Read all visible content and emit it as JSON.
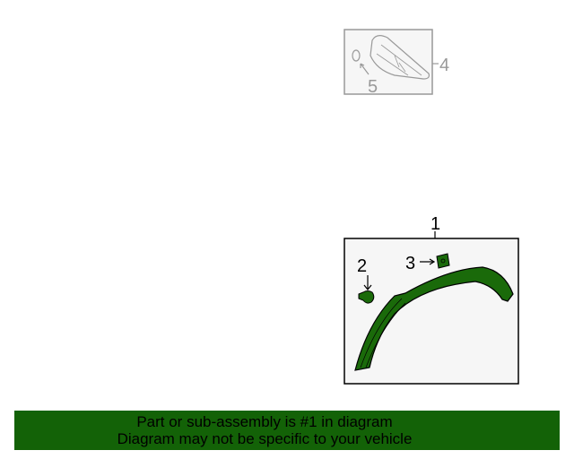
{
  "callouts": {
    "c1": "1",
    "c2": "2",
    "c3": "3",
    "c4": "4",
    "c5": "5"
  },
  "banner": {
    "line1": "Part or sub-assembly is #1 in diagram",
    "line2": "Diagram may not be specific to your vehicle"
  },
  "colors": {
    "highlight": "#1a6a0a",
    "banner": "#136207",
    "box_fill": "#f6f6f6",
    "inactive": "#999999"
  }
}
